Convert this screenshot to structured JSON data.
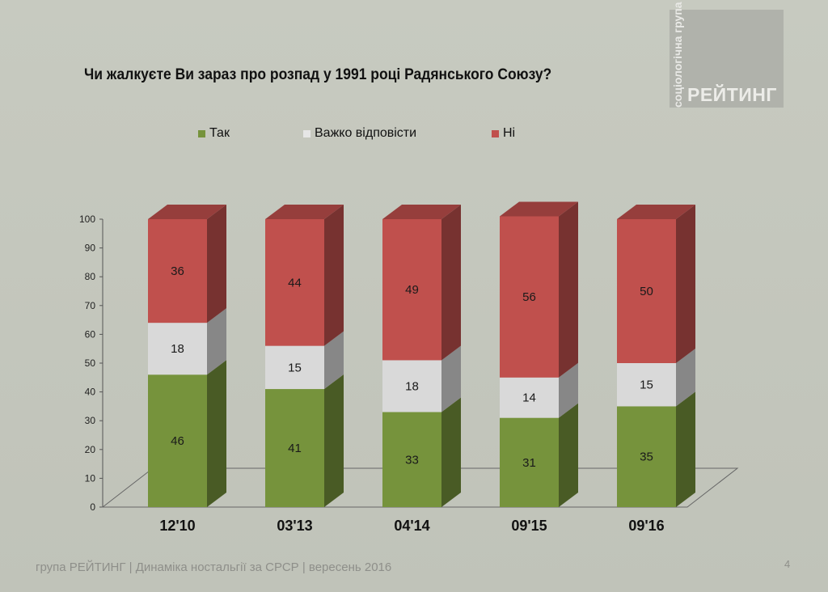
{
  "slide": {
    "title": "Чи жалкуєте Ви зараз про розпад у 1991 році Радянського Союзу?",
    "logo_vertical": "соціологічна група",
    "logo_main": "РЕЙТИНГ",
    "footer": "група РЕЙТИНГ  |  Динаміка ностальгії за СРСР  |  вересень 2016",
    "page_number": "4"
  },
  "legend": [
    {
      "name": "Так",
      "color": "#76933c"
    },
    {
      "name": "Важко відповісти",
      "color": "#d9d9d9"
    },
    {
      "name": "Ні",
      "color": "#c0504d"
    }
  ],
  "chart_data": {
    "type": "bar",
    "stacked": true,
    "categories": [
      "12'10",
      "03'13",
      "04'14",
      "09'15",
      "09'16"
    ],
    "series": [
      {
        "name": "Так",
        "values": [
          46,
          41,
          33,
          31,
          35
        ],
        "color": "#76933c"
      },
      {
        "name": "Важко відповісти",
        "values": [
          18,
          15,
          18,
          14,
          15
        ],
        "color": "#d9d9d9"
      },
      {
        "name": "Ні",
        "values": [
          36,
          44,
          49,
          56,
          50
        ],
        "color": "#c0504d"
      }
    ],
    "yticks": [
      "0",
      "10",
      "20",
      "30",
      "40",
      "50",
      "60",
      "70",
      "80",
      "90",
      "100"
    ],
    "ylim": [
      0,
      100
    ],
    "legend_position": "top",
    "grid": false
  }
}
